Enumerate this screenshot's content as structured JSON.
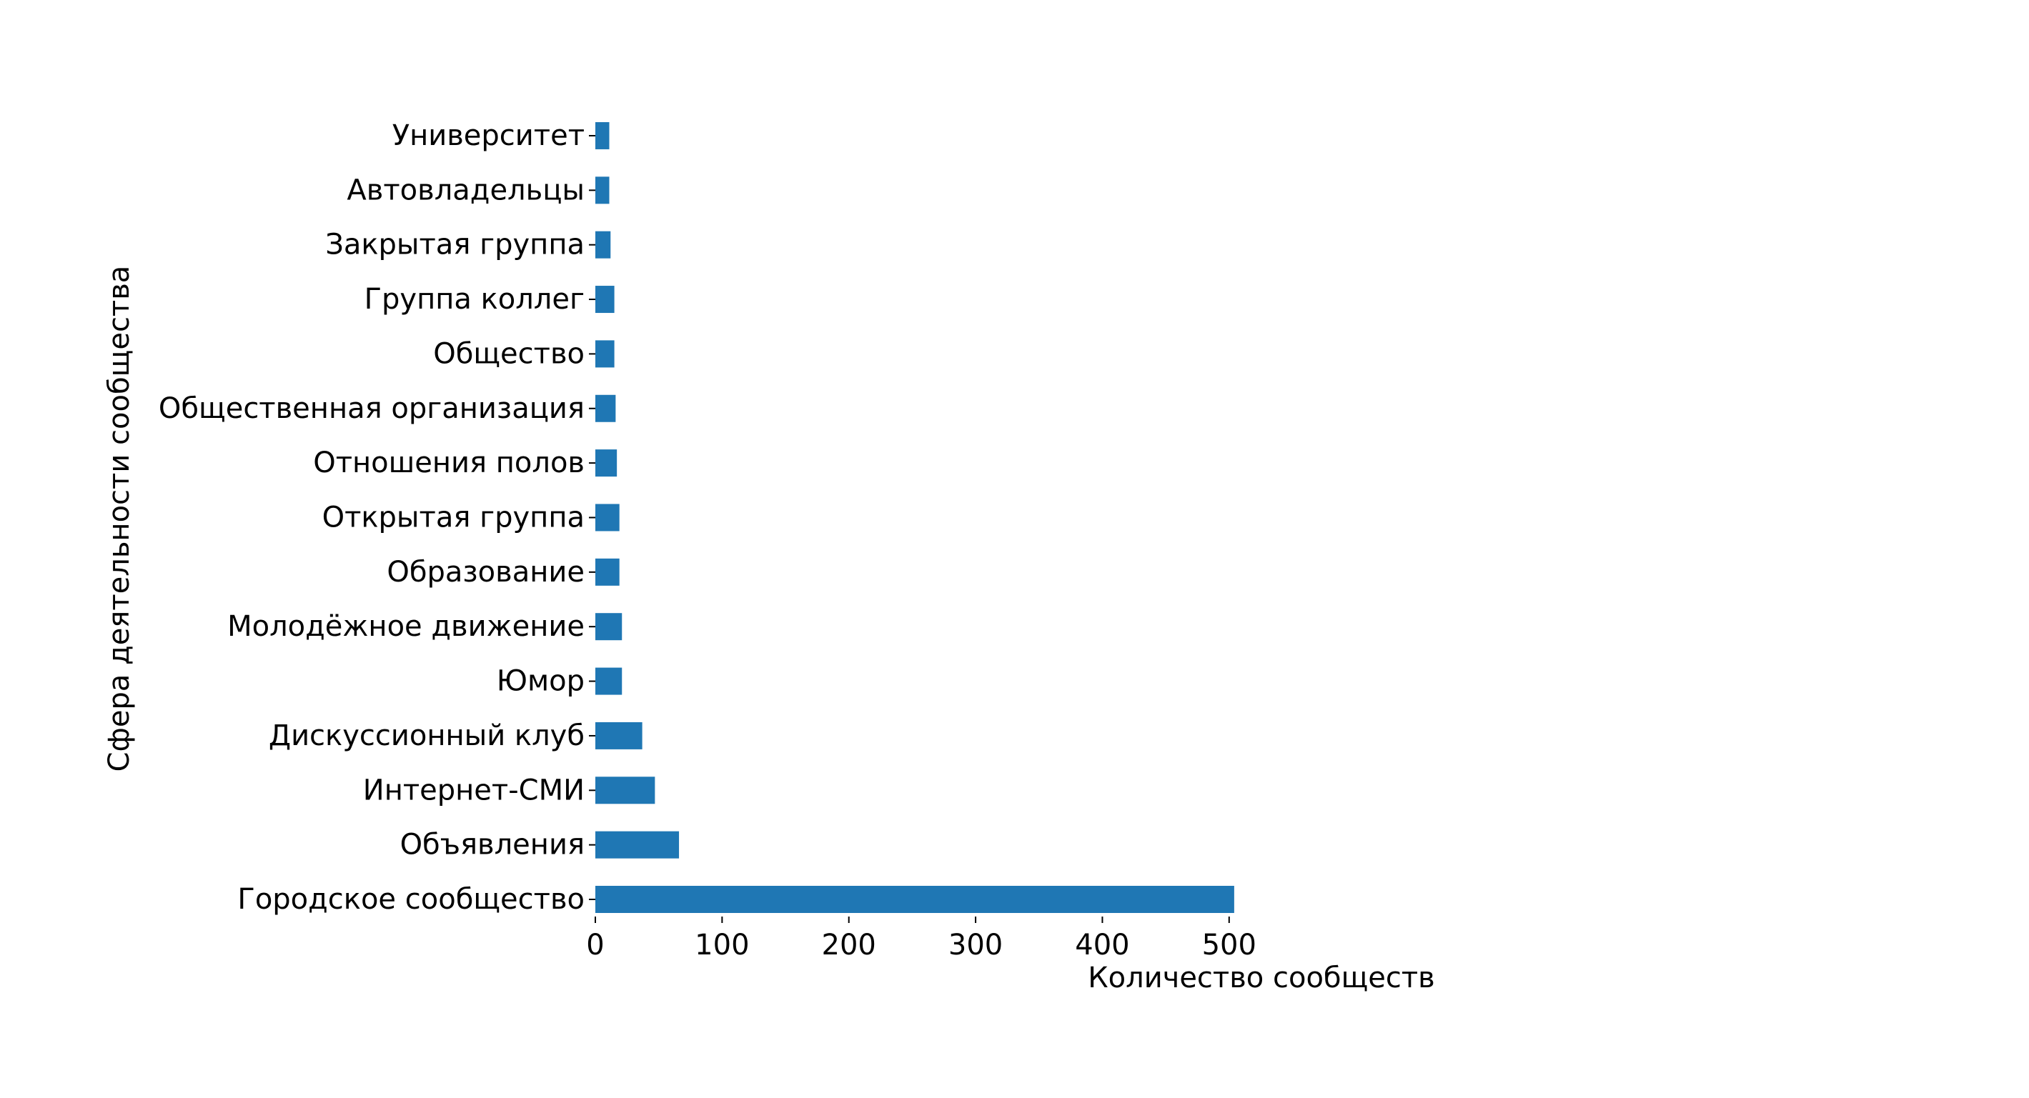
{
  "chart_data": {
    "type": "bar",
    "orientation": "horizontal",
    "categories": [
      "Городское сообщество",
      "Объявления",
      "Интернет-СМИ",
      "Дискуссионный клуб",
      "Юмор",
      "Молодёжное движение",
      "Образование",
      "Открытая группа",
      "Отношения полов",
      "Общественная организация",
      "Общество",
      "Группа коллег",
      "Закрытая группа",
      "Автовладельцы",
      "Университет"
    ],
    "values": [
      504,
      66,
      47,
      37,
      21,
      21,
      19,
      19,
      17,
      16,
      15,
      15,
      12,
      11,
      11
    ],
    "xlabel": "Количество сообществ",
    "ylabel": "Сфера деятельности сообщества",
    "xlim": [
      0,
      510
    ],
    "xticks": [
      0,
      100,
      200,
      300,
      400,
      500
    ],
    "xtick_labels": [
      "0",
      "100",
      "200",
      "300",
      "400",
      "500"
    ],
    "grid": false,
    "legend": "none",
    "bar_color": "#1f77b4"
  }
}
